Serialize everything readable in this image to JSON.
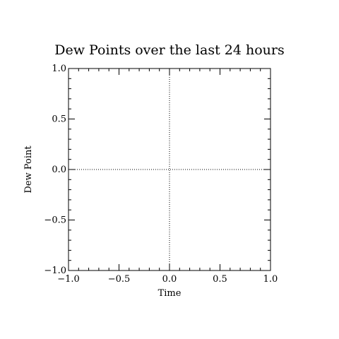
{
  "chart_data": {
    "type": "line",
    "title": "Dew Points over the last 24 hours",
    "xlabel": "Time",
    "ylabel": "Dew Point",
    "xlim": [
      -1.0,
      1.0
    ],
    "ylim": [
      -1.0,
      1.0
    ],
    "x_ticks": [
      -1.0,
      -0.5,
      0.0,
      0.5,
      1.0
    ],
    "y_ticks": [
      -1.0,
      -0.5,
      0.0,
      0.5,
      1.0
    ],
    "x_tick_labels": [
      "−1.0",
      "−0.5",
      "0.0",
      "0.5",
      "1.0"
    ],
    "y_tick_labels": [
      "−1.0",
      "−0.5",
      "0.0",
      "0.5",
      "1.0"
    ],
    "minor_tick_step": 0.1,
    "zero_lines": true,
    "grid": false,
    "series": []
  },
  "colors": {
    "axis": "#000000",
    "background": "#ffffff"
  }
}
